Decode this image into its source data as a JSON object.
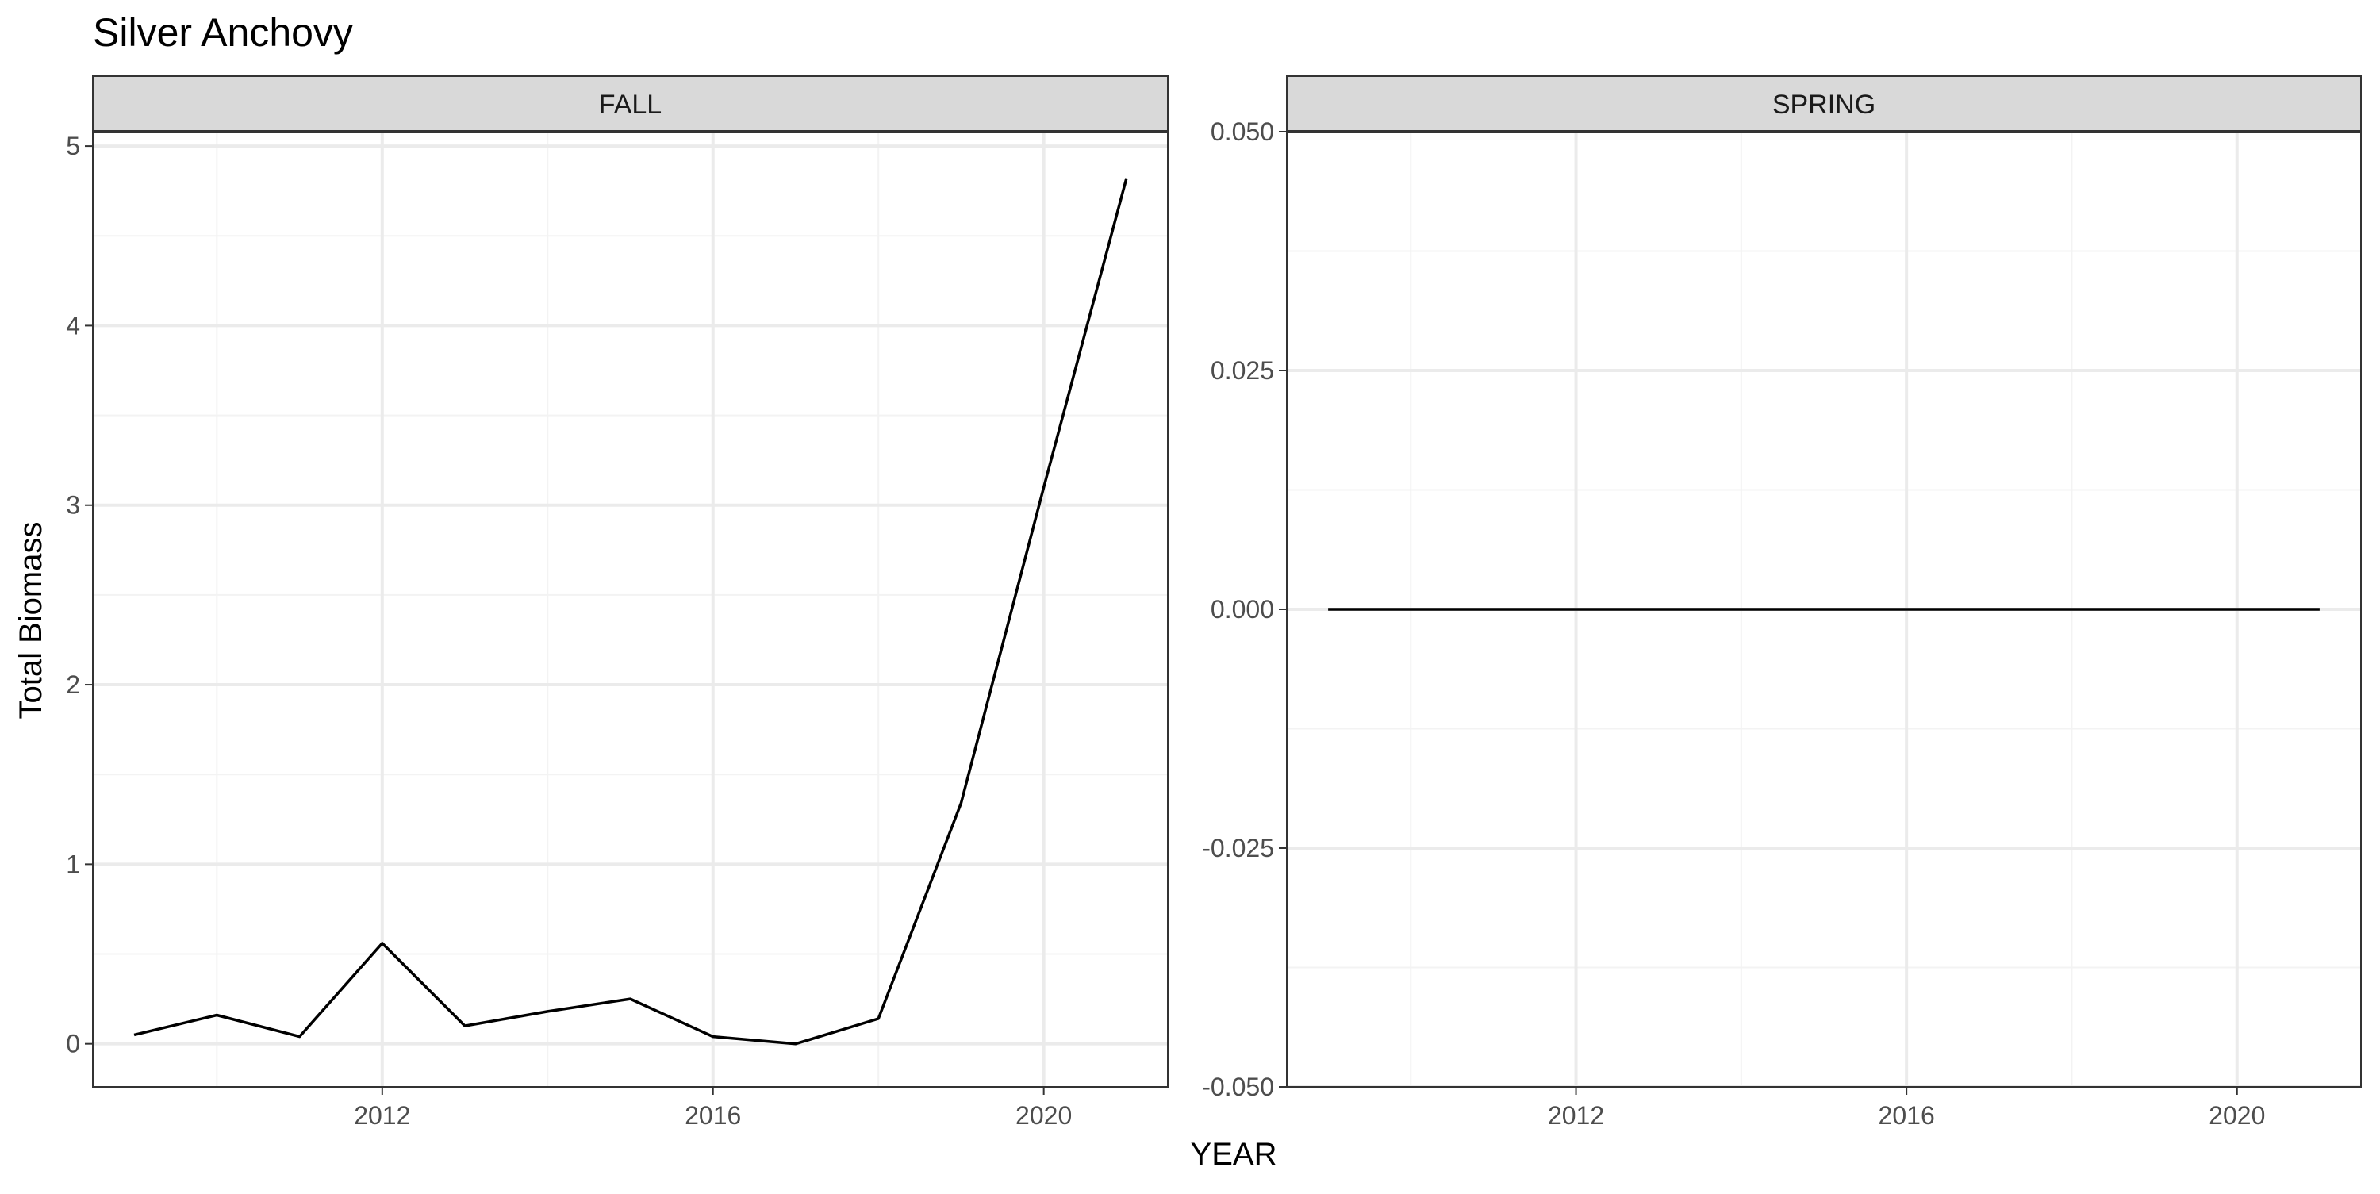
{
  "title": "Silver Anchovy",
  "xlabel": "YEAR",
  "ylabel": "Total Biomass",
  "colors": {
    "line": "#000000",
    "strip_bg": "#d9d9d9",
    "strip_border": "#333333",
    "panel_border": "#333333",
    "grid_major": "#ebebeb",
    "grid_minor": "#f3f3f3",
    "tick_label": "#4d4d4d"
  },
  "chart_data": [
    {
      "type": "line",
      "facet": "FALL",
      "x": [
        2009,
        2010,
        2011,
        2012,
        2013,
        2014,
        2015,
        2016,
        2017,
        2018,
        2019,
        2020,
        2021
      ],
      "y": [
        0.05,
        0.16,
        0.04,
        0.56,
        0.1,
        0.18,
        0.25,
        0.04,
        0.0,
        0.14,
        1.34,
        3.1,
        4.82
      ],
      "xlim": [
        2008.5,
        2021.5
      ],
      "ylim": [
        -0.24,
        5.08
      ],
      "xticks": [
        2012,
        2016,
        2020
      ],
      "xtick_labels": [
        "2012",
        "2016",
        "2020"
      ],
      "yticks": [
        0,
        1,
        2,
        3,
        4,
        5
      ],
      "ytick_labels": [
        "0",
        "1",
        "2",
        "3",
        "4",
        "5"
      ],
      "grid": true
    },
    {
      "type": "line",
      "facet": "SPRING",
      "x": [
        2009,
        2010,
        2011,
        2012,
        2013,
        2014,
        2015,
        2016,
        2017,
        2018,
        2019,
        2020,
        2021
      ],
      "y": [
        0,
        0,
        0,
        0,
        0,
        0,
        0,
        0,
        0,
        0,
        0,
        0,
        0
      ],
      "xlim": [
        2008.5,
        2021.5
      ],
      "ylim": [
        -0.05,
        0.05
      ],
      "xticks": [
        2012,
        2016,
        2020
      ],
      "xtick_labels": [
        "2012",
        "2016",
        "2020"
      ],
      "yticks": [
        -0.05,
        -0.025,
        0.0,
        0.025,
        0.05
      ],
      "ytick_labels": [
        "-0.050",
        "-0.025",
        "0.000",
        "0.025",
        "0.050"
      ],
      "grid": true
    }
  ]
}
